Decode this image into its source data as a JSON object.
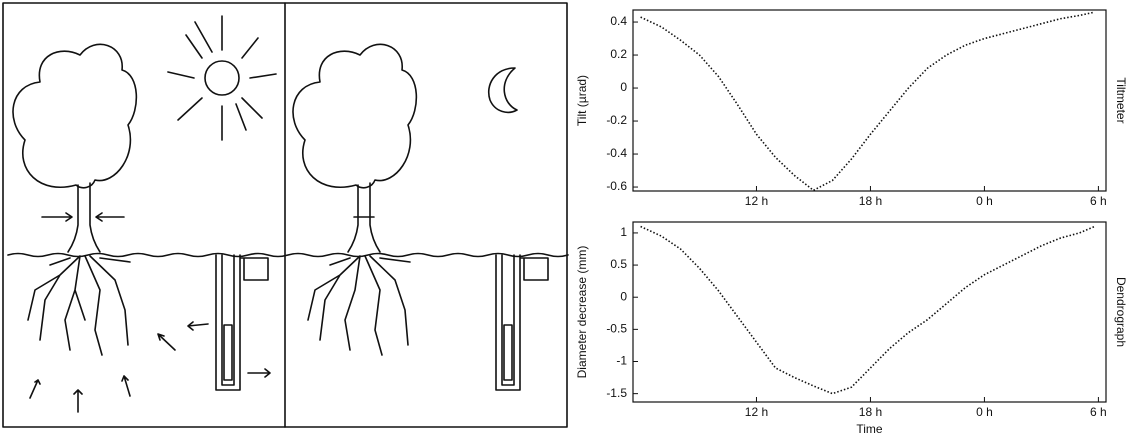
{
  "chart_data": [
    {
      "type": "line",
      "y_label": "Tilt (µrad)",
      "side_label": "Tiltmeter",
      "x": [
        5.9,
        7,
        8,
        9,
        10,
        11,
        12,
        13,
        14,
        15,
        16,
        17,
        18,
        19,
        20,
        21,
        22,
        23,
        24,
        25,
        26,
        27,
        28,
        29,
        29.8
      ],
      "series": [
        {
          "color": "#111111",
          "values": [
            0.43,
            0.37,
            0.29,
            0.2,
            0.07,
            -0.1,
            -0.28,
            -0.42,
            -0.53,
            -0.62,
            -0.56,
            -0.43,
            -0.28,
            -0.14,
            0,
            0.12,
            0.2,
            0.26,
            0.3,
            0.33,
            0.36,
            0.39,
            0.42,
            0.44,
            0.46
          ]
        }
      ],
      "xlim": [
        5.5,
        30.4
      ],
      "ylim": [
        -0.624,
        0.473
      ],
      "xticks": [
        {
          "value": 12,
          "label": "12 h"
        },
        {
          "value": 18,
          "label": "18 h"
        },
        {
          "value": 24,
          "label": "0 h"
        },
        {
          "value": 30,
          "label": "6 h"
        }
      ],
      "yticks": [
        0.4,
        0.2,
        0,
        -0.2,
        -0.4,
        -0.6
      ]
    },
    {
      "type": "line",
      "x_label": "Time",
      "y_label": "Diameter decrease (mm)",
      "side_label": "Dendrograph",
      "x": [
        5.9,
        7,
        8,
        9,
        10,
        11,
        12,
        13,
        14,
        15,
        16,
        17,
        18,
        19,
        20,
        21,
        22,
        23,
        24,
        25,
        26,
        27,
        28,
        29,
        29.8
      ],
      "series": [
        {
          "color": "#111111",
          "values": [
            1.1,
            0.95,
            0.75,
            0.45,
            0.1,
            -0.3,
            -0.7,
            -1.1,
            -1.25,
            -1.38,
            -1.5,
            -1.4,
            -1.1,
            -0.8,
            -0.55,
            -0.35,
            -0.1,
            0.15,
            0.35,
            0.5,
            0.65,
            0.8,
            0.92,
            1.0,
            1.1
          ]
        }
      ],
      "xlim": [
        5.5,
        30.4
      ],
      "ylim": [
        -1.63,
        1.17
      ],
      "xticks": [
        {
          "value": 12,
          "label": "12 h"
        },
        {
          "value": 18,
          "label": "18 h"
        },
        {
          "value": 24,
          "label": "0 h"
        },
        {
          "value": 30,
          "label": "6 h"
        }
      ],
      "yticks": [
        1,
        0.5,
        0,
        -0.5,
        -1,
        -1.5
      ]
    }
  ]
}
